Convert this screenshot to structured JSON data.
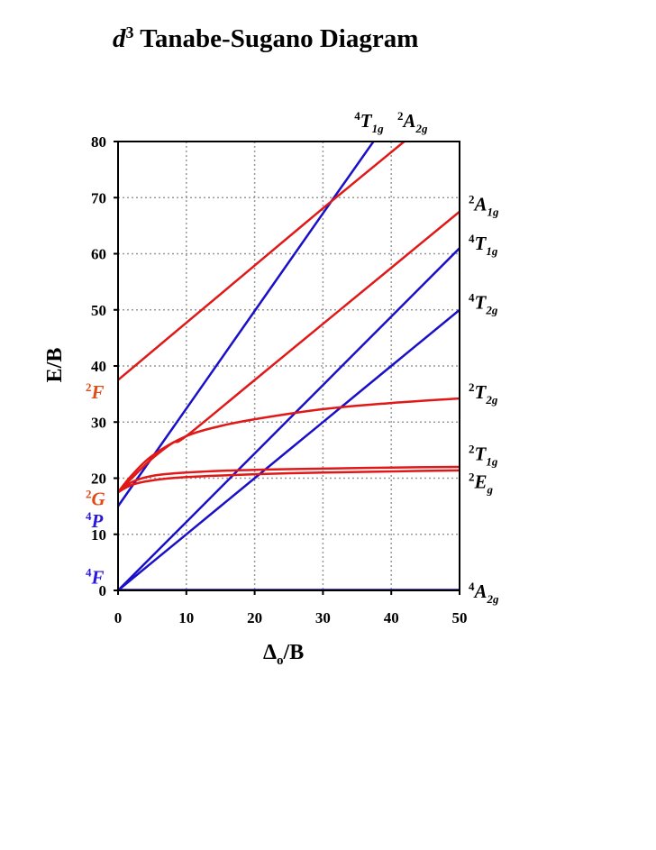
{
  "chart_data": {
    "type": "line",
    "title": {
      "italic": "d",
      "sup": "3",
      "rest": " Tanabe-Sugano Diagram"
    },
    "xlabel": {
      "delta": "Δ",
      "sub": "o",
      "rest": "/B"
    },
    "ylabel": "E/B",
    "xlim": [
      0,
      50
    ],
    "ylim": [
      0,
      80
    ],
    "x_ticks": [
      "0",
      "10",
      "20",
      "30",
      "40",
      "50"
    ],
    "y_ticks": [
      "0",
      "10",
      "20",
      "30",
      "40",
      "50",
      "60",
      "70",
      "80"
    ],
    "grid": true,
    "colors": {
      "quartet": "#1a10c8",
      "doublet": "#e01818",
      "free_ion_red": "#e04a18",
      "free_ion_blue": "#2a18d8"
    },
    "series": [
      {
        "name": "4A2g",
        "color": "quartet",
        "x": [
          0,
          50
        ],
        "y": [
          0,
          0
        ]
      },
      {
        "name": "4T2g",
        "color": "quartet",
        "x": [
          0,
          10,
          20,
          30,
          40,
          50
        ],
        "y": [
          0,
          10,
          20,
          30,
          40,
          50
        ]
      },
      {
        "name": "4T1g",
        "color": "quartet",
        "x": [
          0,
          10,
          20,
          30,
          40,
          50
        ],
        "y": [
          0,
          12.2,
          24.4,
          36.6,
          48.8,
          61
        ]
      },
      {
        "name": "4T1g",
        "color": "quartet",
        "x": [
          0,
          10,
          20,
          30,
          37.5
        ],
        "y": [
          15,
          32.4,
          49.8,
          67.2,
          80.2
        ]
      },
      {
        "name": "2Eg",
        "color": "doublet",
        "x": [
          0,
          2,
          5,
          10,
          20,
          30,
          40,
          50
        ],
        "y": [
          17.5,
          18.8,
          19.6,
          20.2,
          20.7,
          21.0,
          21.2,
          21.4
        ]
      },
      {
        "name": "2T1g",
        "color": "doublet",
        "x": [
          0,
          2,
          5,
          10,
          20,
          30,
          40,
          50
        ],
        "y": [
          17.5,
          19.3,
          20.4,
          21.0,
          21.5,
          21.7,
          21.9,
          22.0
        ]
      },
      {
        "name": "2T2g",
        "color": "doublet",
        "x": [
          0,
          2,
          5,
          10,
          15,
          20,
          30,
          40,
          50
        ],
        "y": [
          17.5,
          20.5,
          24.0,
          27.5,
          29.3,
          30.5,
          32.3,
          33.4,
          34.2
        ]
      },
      {
        "name": "2A1g",
        "color": "doublet",
        "x": [
          0,
          2,
          5,
          8,
          10,
          20,
          30,
          40,
          50
        ],
        "y": [
          17.5,
          20.0,
          23.5,
          26.3,
          27.5,
          37.5,
          47.5,
          57.5,
          67.5
        ]
      },
      {
        "name": "2A2g",
        "color": "doublet",
        "x": [
          0,
          10,
          20,
          30,
          42.5
        ],
        "y": [
          37.5,
          47.7,
          57.9,
          68.1,
          80.6
        ]
      }
    ],
    "right_labels": [
      {
        "mult": "4",
        "sym": "A",
        "sub": "2g",
        "y": 0,
        "color": "#000000"
      },
      {
        "mult": "2",
        "sym": "E",
        "sub": "g",
        "y": 19.5,
        "color": "#000000"
      },
      {
        "mult": "2",
        "sym": "T",
        "sub": "1g",
        "y": 24.5,
        "color": "#000000"
      },
      {
        "mult": "2",
        "sym": "T",
        "sub": "2g",
        "y": 35.5,
        "color": "#000000"
      },
      {
        "mult": "4",
        "sym": "T",
        "sub": "2g",
        "y": 51.5,
        "color": "#000000"
      },
      {
        "mult": "4",
        "sym": "T",
        "sub": "1g",
        "y": 62,
        "color": "#000000"
      },
      {
        "mult": "2",
        "sym": "A",
        "sub": "1g",
        "y": 69,
        "color": "#000000"
      }
    ],
    "top_labels": [
      {
        "mult": "4",
        "sym": "T",
        "sub": "1g",
        "x": 37.5,
        "color": "#000000"
      },
      {
        "mult": "2",
        "sym": "A",
        "sub": "2g",
        "x": 43.8,
        "color": "#000000"
      }
    ],
    "left_labels": [
      {
        "mult": "2",
        "sym": "F",
        "y": 35.5,
        "color": "#e04a18"
      },
      {
        "mult": "2",
        "sym": "G",
        "y": 16.5,
        "color": "#e04a18"
      },
      {
        "mult": "4",
        "sym": "P",
        "y": 12.5,
        "color": "#2a18d8"
      },
      {
        "mult": "4",
        "sym": "F",
        "y": 2.5,
        "color": "#2a18d8"
      }
    ]
  }
}
